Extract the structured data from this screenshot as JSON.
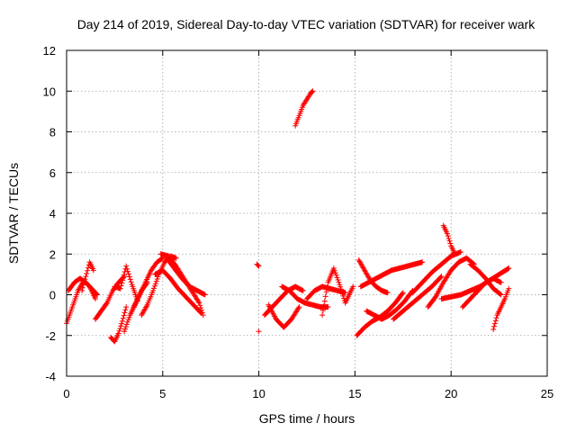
{
  "chart_data": {
    "type": "scatter",
    "title": "Day 214 of 2019, Sidereal Day-to-day VTEC variation (SDTVAR) for receiver wark",
    "xlabel": "GPS time / hours",
    "ylabel": "SDTVAR / TECUs",
    "xlim": [
      0,
      25
    ],
    "ylim": [
      -4,
      12
    ],
    "xticks": [
      0,
      5,
      10,
      15,
      20,
      25
    ],
    "yticks": [
      -4,
      -2,
      0,
      2,
      4,
      6,
      8,
      10,
      12
    ],
    "grid": true,
    "marker": "+",
    "series": [
      {
        "name": "SDTVAR",
        "color": "#ff0000",
        "tracks": [
          {
            "t": [
              0.0,
              0.3,
              0.6,
              0.9,
              1.2,
              1.5
            ],
            "v": [
              -1.4,
              -0.6,
              0.2,
              0.7,
              0.4,
              -0.2
            ]
          },
          {
            "t": [
              0.1,
              0.4,
              0.7,
              1.0,
              1.3,
              1.6
            ],
            "v": [
              0.2,
              0.6,
              0.8,
              0.6,
              0.3,
              0.0
            ]
          },
          {
            "t": [
              0.8,
              1.0,
              1.2,
              1.4
            ],
            "v": [
              0.2,
              0.9,
              1.6,
              1.2
            ]
          },
          {
            "t": [
              1.5,
              1.8,
              2.1,
              2.4,
              2.7,
              3.0
            ],
            "v": [
              -1.2,
              -0.8,
              -0.4,
              0.2,
              0.6,
              0.9
            ]
          },
          {
            "t": [
              2.3,
              2.5,
              2.7,
              2.9,
              3.1
            ],
            "v": [
              -2.1,
              -2.3,
              -1.9,
              -1.3,
              -0.6
            ]
          },
          {
            "t": [
              2.5,
              2.8,
              3.1,
              3.4,
              3.7
            ],
            "v": [
              0.4,
              0.3,
              1.4,
              0.5,
              -0.3
            ]
          },
          {
            "t": [
              3.0,
              3.3,
              3.6,
              3.9,
              4.2
            ],
            "v": [
              -1.8,
              -1.0,
              -0.4,
              0.2,
              0.6
            ]
          },
          {
            "t": [
              3.5,
              3.8,
              4.1,
              4.4,
              4.7,
              5.0
            ],
            "v": [
              -0.6,
              0.0,
              0.6,
              1.2,
              1.6,
              1.8
            ]
          },
          {
            "t": [
              3.9,
              4.2,
              4.5,
              4.8,
              5.1,
              5.4,
              5.7
            ],
            "v": [
              -1.0,
              -0.5,
              0.2,
              1.0,
              1.6,
              1.9,
              1.8
            ]
          },
          {
            "t": [
              4.9,
              5.3,
              5.7,
              6.1,
              6.5,
              6.9,
              7.1
            ],
            "v": [
              2.0,
              1.9,
              1.4,
              0.8,
              0.2,
              -0.4,
              -1.0
            ]
          },
          {
            "t": [
              4.6,
              5.0,
              5.4,
              5.8,
              6.2,
              6.6,
              7.0
            ],
            "v": [
              1.0,
              1.2,
              0.8,
              0.3,
              -0.1,
              -0.5,
              -0.9
            ]
          },
          {
            "t": [
              5.2,
              5.6,
              6.0,
              6.4,
              6.8,
              7.2
            ],
            "v": [
              1.8,
              1.3,
              0.8,
              0.4,
              0.2,
              0.0
            ]
          },
          {
            "t": [
              9.9,
              10.0
            ],
            "v": [
              1.5,
              1.4
            ]
          },
          {
            "t": [
              10.0
            ],
            "v": [
              -1.8
            ]
          },
          {
            "t": [
              10.3,
              10.7,
              11.1,
              11.5,
              11.9,
              12.3
            ],
            "v": [
              -1.0,
              -0.6,
              -0.2,
              0.2,
              0.4,
              0.2
            ]
          },
          {
            "t": [
              10.5,
              10.9,
              11.3,
              11.7,
              12.1
            ],
            "v": [
              -0.5,
              -1.2,
              -1.6,
              -1.2,
              -0.6
            ]
          },
          {
            "t": [
              11.2,
              11.6,
              12.0,
              12.4,
              12.8,
              13.2,
              13.6
            ],
            "v": [
              0.4,
              0.2,
              -0.2,
              -0.4,
              -0.5,
              -0.6,
              -0.6
            ]
          },
          {
            "t": [
              11.9,
              12.1,
              12.3,
              12.5,
              12.7,
              12.8
            ],
            "v": [
              8.3,
              8.8,
              9.3,
              9.6,
              9.9,
              10.0
            ]
          },
          {
            "t": [
              12.5,
              12.9,
              13.3,
              13.7,
              14.1,
              14.5
            ],
            "v": [
              -0.2,
              0.2,
              0.4,
              0.3,
              0.2,
              0.1
            ]
          },
          {
            "t": [
              13.3,
              13.6,
              13.9,
              14.2,
              14.5,
              14.9
            ],
            "v": [
              -1.0,
              0.6,
              1.3,
              0.5,
              -0.4,
              0.4
            ]
          },
          {
            "t": [
              15.1,
              15.5,
              15.9,
              16.3,
              16.7,
              17.1,
              17.5
            ],
            "v": [
              -2.0,
              -1.6,
              -1.3,
              -1.1,
              -0.8,
              -0.4,
              0.1
            ]
          },
          {
            "t": [
              15.2,
              15.5,
              15.8,
              16.1,
              16.4,
              16.7
            ],
            "v": [
              1.7,
              1.2,
              0.7,
              0.4,
              0.2,
              0.1
            ]
          },
          {
            "t": [
              15.3,
              15.7,
              16.1,
              16.5,
              16.9,
              17.3,
              17.7,
              18.1,
              18.5
            ],
            "v": [
              0.4,
              0.6,
              0.8,
              1.0,
              1.2,
              1.3,
              1.4,
              1.5,
              1.6
            ]
          },
          {
            "t": [
              15.6,
              16.0,
              16.4,
              16.8,
              17.2,
              17.6,
              18.0
            ],
            "v": [
              -0.8,
              -1.0,
              -1.2,
              -1.0,
              -0.7,
              -0.3,
              0.2
            ]
          },
          {
            "t": [
              17.0,
              17.5,
              18.0,
              18.5,
              19.0,
              19.5
            ],
            "v": [
              -1.2,
              -0.8,
              -0.4,
              0.0,
              0.4,
              0.9
            ]
          },
          {
            "t": [
              18.0,
              18.5,
              19.0,
              19.5,
              20.0,
              20.5
            ],
            "v": [
              0.1,
              0.6,
              1.1,
              1.5,
              1.9,
              2.1
            ]
          },
          {
            "t": [
              18.8,
              19.2,
              19.6,
              20.0,
              20.4,
              20.8,
              21.2
            ],
            "v": [
              -0.6,
              -0.1,
              0.6,
              1.2,
              1.6,
              1.8,
              1.5
            ]
          },
          {
            "t": [
              19.6,
              19.8,
              20.0,
              20.2
            ],
            "v": [
              3.4,
              3.0,
              2.4,
              2.0
            ]
          },
          {
            "t": [
              19.5,
              20.0,
              20.5,
              21.0,
              21.5,
              22.0,
              22.5,
              23.0
            ],
            "v": [
              -0.2,
              -0.1,
              0.0,
              0.2,
              0.4,
              0.7,
              1.0,
              1.3
            ]
          },
          {
            "t": [
              20.6,
              21.0,
              21.4,
              21.8,
              22.2,
              22.6
            ],
            "v": [
              -0.6,
              -0.2,
              0.2,
              0.6,
              0.8,
              0.6
            ]
          },
          {
            "t": [
              21.0,
              21.4,
              21.8,
              22.2,
              22.6
            ],
            "v": [
              1.5,
              1.2,
              0.8,
              0.3,
              0.0
            ]
          },
          {
            "t": [
              22.2,
              22.4,
              22.6,
              22.8,
              23.0
            ],
            "v": [
              -1.7,
              -1.0,
              -0.6,
              -0.2,
              0.3
            ]
          }
        ]
      }
    ]
  }
}
